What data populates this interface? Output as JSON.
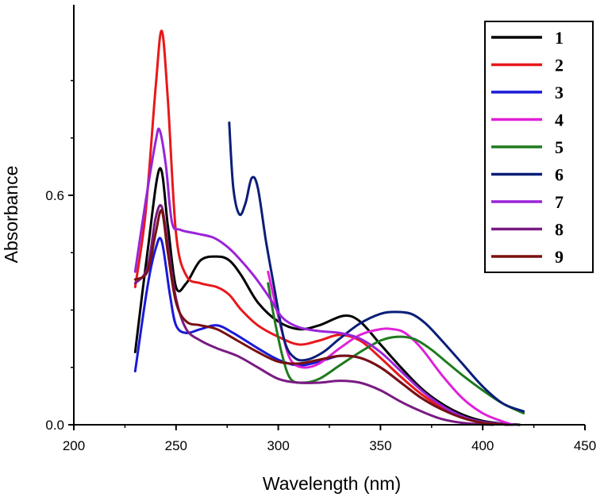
{
  "chart_data": {
    "type": "line",
    "title": "",
    "xlabel": "Wavelength (nm)",
    "ylabel": "Absorbance",
    "xlim": [
      200,
      450
    ],
    "ylim": [
      0.0,
      1.05
    ],
    "xticks": [
      "200",
      "250",
      "300",
      "350",
      "400",
      "450"
    ],
    "yticks": [
      "0.0",
      "0.6"
    ],
    "xtick_values": [
      200,
      250,
      300,
      350,
      400,
      450
    ],
    "ytick_values": [
      0.0,
      0.6
    ],
    "grid": false,
    "legend_position": "top-right",
    "series": [
      {
        "name": "1",
        "color": "#000000",
        "x": [
          230,
          236,
          242,
          246,
          250,
          255,
          262,
          270,
          276,
          282,
          290,
          300,
          310,
          320,
          332,
          340,
          350,
          360,
          370,
          380,
          390,
          400,
          410,
          418
        ],
        "y": [
          0.19,
          0.45,
          0.67,
          0.52,
          0.36,
          0.37,
          0.43,
          0.44,
          0.43,
          0.39,
          0.32,
          0.27,
          0.25,
          0.26,
          0.285,
          0.27,
          0.21,
          0.15,
          0.095,
          0.055,
          0.027,
          0.01,
          0.003,
          0.0
        ]
      },
      {
        "name": "2",
        "color": "#e8181a",
        "x": [
          230,
          235,
          240,
          243,
          246,
          250,
          255,
          262,
          270,
          276,
          282,
          290,
          300,
          310,
          320,
          330,
          340,
          350,
          360,
          370,
          380,
          390,
          400,
          410,
          415
        ],
        "y": [
          0.36,
          0.55,
          0.88,
          1.03,
          0.85,
          0.5,
          0.39,
          0.37,
          0.36,
          0.34,
          0.3,
          0.26,
          0.23,
          0.21,
          0.22,
          0.235,
          0.22,
          0.175,
          0.125,
          0.08,
          0.045,
          0.02,
          0.006,
          0.001,
          0.0
        ]
      },
      {
        "name": "3",
        "color": "#1a1ad8",
        "x": [
          230,
          236,
          240,
          243,
          247,
          250,
          255,
          262,
          270,
          278,
          290,
          300,
          310,
          320,
          330,
          340,
          350,
          360,
          370,
          380,
          390,
          400,
          410,
          415
        ],
        "y": [
          0.14,
          0.36,
          0.46,
          0.48,
          0.34,
          0.26,
          0.24,
          0.25,
          0.26,
          0.24,
          0.2,
          0.17,
          0.155,
          0.165,
          0.18,
          0.175,
          0.15,
          0.11,
          0.07,
          0.04,
          0.02,
          0.007,
          0.002,
          0.0
        ]
      },
      {
        "name": "4",
        "color": "#e020d8",
        "x": [
          295,
          298,
          302,
          306,
          312,
          320,
          330,
          340,
          350,
          356,
          362,
          370,
          380,
          390,
          400,
          410,
          415
        ],
        "y": [
          0.4,
          0.33,
          0.24,
          0.17,
          0.15,
          0.16,
          0.2,
          0.235,
          0.25,
          0.25,
          0.24,
          0.2,
          0.13,
          0.07,
          0.03,
          0.008,
          0.0
        ]
      },
      {
        "name": "5",
        "color": "#1f7a1f",
        "x": [
          295,
          298,
          302,
          306,
          312,
          320,
          330,
          340,
          350,
          358,
          366,
          374,
          382,
          390,
          400,
          410,
          420
        ],
        "y": [
          0.37,
          0.28,
          0.18,
          0.12,
          0.11,
          0.12,
          0.155,
          0.19,
          0.22,
          0.23,
          0.225,
          0.2,
          0.165,
          0.13,
          0.09,
          0.055,
          0.03
        ]
      },
      {
        "name": "6",
        "color": "#0a1e78",
        "x": [
          276,
          278,
          281,
          284,
          287,
          290,
          294,
          298,
          303,
          308,
          314,
          322,
          330,
          340,
          350,
          357,
          365,
          372,
          380,
          390,
          400,
          410,
          420
        ],
        "y": [
          0.79,
          0.62,
          0.55,
          0.58,
          0.645,
          0.62,
          0.48,
          0.36,
          0.22,
          0.175,
          0.17,
          0.19,
          0.225,
          0.265,
          0.29,
          0.295,
          0.29,
          0.265,
          0.22,
          0.16,
          0.1,
          0.055,
          0.035
        ]
      },
      {
        "name": "7",
        "color": "#9a24d8",
        "x": [
          230,
          235,
          240,
          242,
          245,
          248,
          252,
          260,
          268,
          274,
          280,
          288,
          296,
          302,
          310,
          320,
          330,
          340,
          350,
          360,
          370,
          380,
          390,
          400,
          410,
          415
        ],
        "y": [
          0.4,
          0.58,
          0.74,
          0.77,
          0.68,
          0.53,
          0.51,
          0.5,
          0.49,
          0.47,
          0.44,
          0.39,
          0.33,
          0.28,
          0.255,
          0.245,
          0.24,
          0.225,
          0.19,
          0.14,
          0.09,
          0.05,
          0.022,
          0.007,
          0.002,
          0.0
        ]
      },
      {
        "name": "8",
        "color": "#7a1a82",
        "x": [
          230,
          236,
          240,
          243,
          246,
          250,
          255,
          262,
          270,
          280,
          290,
          300,
          310,
          320,
          330,
          340,
          350,
          360,
          370,
          380,
          390,
          400,
          405
        ],
        "y": [
          0.37,
          0.41,
          0.54,
          0.57,
          0.47,
          0.33,
          0.25,
          0.22,
          0.2,
          0.18,
          0.15,
          0.12,
          0.11,
          0.11,
          0.115,
          0.11,
          0.09,
          0.06,
          0.035,
          0.015,
          0.005,
          0.001,
          0.0
        ]
      },
      {
        "name": "9",
        "color": "#7a1010",
        "x": [
          230,
          236,
          240,
          243,
          246,
          250,
          255,
          262,
          270,
          280,
          290,
          300,
          310,
          320,
          330,
          340,
          350,
          360,
          370,
          380,
          390,
          400,
          410,
          412
        ],
        "y": [
          0.38,
          0.4,
          0.5,
          0.56,
          0.45,
          0.32,
          0.27,
          0.26,
          0.25,
          0.22,
          0.19,
          0.165,
          0.16,
          0.17,
          0.18,
          0.175,
          0.15,
          0.11,
          0.07,
          0.04,
          0.018,
          0.005,
          0.001,
          0.0
        ]
      }
    ]
  }
}
